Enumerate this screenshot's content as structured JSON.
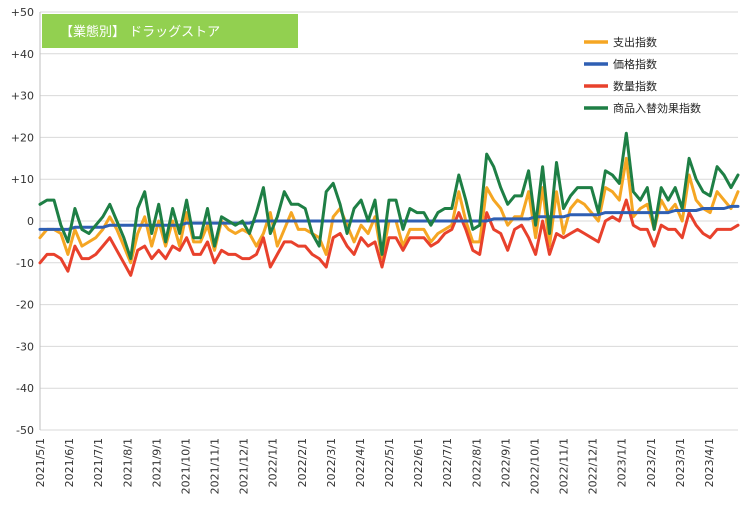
{
  "chart_data": {
    "type": "line",
    "title": "【業態別】 ドラッグストア",
    "title_bg_color": "#92D050",
    "xlabel": "",
    "ylabel": "",
    "ylim": [
      -50,
      50
    ],
    "yticks": [
      "+50",
      "+40",
      "+30",
      "+20",
      "+10",
      "0",
      "-10",
      "-20",
      "-30",
      "-40",
      "-50"
    ],
    "xtick_labels": [
      "2021/5/1",
      "2021/6/1",
      "2021/7/1",
      "2021/8/1",
      "2021/9/1",
      "2021/10/1",
      "2021/11/1",
      "2021/12/1",
      "2022/1/1",
      "2022/2/1",
      "2022/3/1",
      "2022/4/1",
      "2022/5/1",
      "2022/6/1",
      "2022/7/1",
      "2022/8/1",
      "2022/9/1",
      "2022/10/1",
      "2022/11/1",
      "2022/12/1",
      "2023/1/1",
      "2023/2/1",
      "2023/3/1",
      "2023/4/1"
    ],
    "grid": "horizontal",
    "legend_position": "top-right",
    "series": [
      {
        "name": "支出指数",
        "color": "#F5A623",
        "values": [
          -4,
          -2,
          -2,
          -3,
          -8,
          -2,
          -6,
          -5,
          -4,
          -2,
          1,
          -2,
          -6,
          -10,
          -3,
          1,
          -6,
          0,
          -6,
          0,
          -6,
          2,
          -5,
          -5,
          -1,
          -7,
          0,
          -2,
          -3,
          -2,
          -3,
          -6,
          -3,
          2,
          -6,
          -2,
          2,
          -2,
          -2,
          -3,
          -4,
          -8,
          1,
          3,
          -1,
          -5,
          -1,
          -3,
          1,
          -9,
          0,
          0,
          -6,
          -2,
          -2,
          -2,
          -5,
          -3,
          -2,
          -1,
          7,
          0,
          -5,
          -5,
          8,
          5,
          3,
          -1,
          1,
          1,
          7,
          -4,
          8,
          -6,
          7,
          -3,
          3,
          5,
          4,
          2,
          0,
          8,
          7,
          5,
          15,
          1,
          3,
          4,
          -2,
          5,
          2,
          4,
          0,
          11,
          5,
          3,
          2,
          7,
          5,
          3,
          7
        ]
      },
      {
        "name": "価格指数",
        "color": "#2F5FB3",
        "values": [
          -2,
          -2,
          -2,
          -2,
          -2,
          -1.5,
          -1.5,
          -1.5,
          -1.5,
          -1.5,
          -1,
          -1,
          -1,
          -1,
          -1,
          -1,
          -1,
          -1,
          -1,
          -1,
          -1,
          -0.5,
          -0.5,
          -0.5,
          -0.5,
          -0.5,
          -0.5,
          -0.5,
          -0.5,
          -0.5,
          -0.5,
          0,
          0,
          0,
          0,
          0,
          0,
          0,
          0,
          0,
          0,
          0,
          0,
          0,
          0,
          0,
          0,
          0,
          0,
          0,
          0,
          0,
          0,
          0,
          0,
          0,
          0,
          0,
          0,
          0,
          0,
          0,
          0,
          0,
          0,
          0.5,
          0.5,
          0.5,
          0.5,
          0.5,
          0.5,
          1,
          1,
          1,
          1,
          1,
          1.5,
          1.5,
          1.5,
          1.5,
          1.5,
          2,
          2,
          2,
          2,
          2,
          2,
          2,
          2,
          2,
          2,
          2.5,
          2.5,
          2.5,
          2.5,
          3,
          3,
          3,
          3,
          3.5,
          3.5
        ]
      },
      {
        "name": "数量指数",
        "color": "#E8412C",
        "values": [
          -10,
          -8,
          -8,
          -9,
          -12,
          -6,
          -9,
          -9,
          -8,
          -6,
          -4,
          -7,
          -10,
          -13,
          -7,
          -6,
          -9,
          -7,
          -9,
          -6,
          -7,
          -4,
          -8,
          -8,
          -5,
          -10,
          -7,
          -8,
          -8,
          -9,
          -9,
          -8,
          -4,
          -11,
          -8,
          -5,
          -5,
          -6,
          -6,
          -8,
          -9,
          -11,
          -4,
          -3,
          -6,
          -8,
          -4,
          -6,
          -5,
          -11,
          -4,
          -4,
          -7,
          -4,
          -4,
          -4,
          -6,
          -5,
          -3,
          -2,
          2,
          -2,
          -7,
          -8,
          2,
          -2,
          -3,
          -7,
          -2,
          -1,
          -4,
          -8,
          0,
          -8,
          -3,
          -4,
          -3,
          -2,
          -3,
          -4,
          -5,
          0,
          1,
          0,
          5,
          -1,
          -2,
          -2,
          -6,
          -1,
          -2,
          -2,
          -4,
          2,
          -1,
          -3,
          -4,
          -2,
          -2,
          -2,
          -1
        ]
      },
      {
        "name": "商品入替効果指数",
        "color": "#1E7F45",
        "values": [
          4,
          5,
          5,
          -1,
          -5,
          3,
          -2,
          -3,
          -1,
          1,
          4,
          0,
          -4,
          -9,
          3,
          7,
          -3,
          4,
          -5,
          3,
          -3,
          5,
          -4,
          -4,
          3,
          -6,
          1,
          0,
          -1,
          0,
          -3,
          2,
          8,
          -3,
          1,
          7,
          4,
          4,
          3,
          -3,
          -6,
          7,
          9,
          4,
          -3,
          3,
          5,
          0,
          5,
          -8,
          5,
          5,
          -2,
          3,
          2,
          2,
          -1,
          2,
          3,
          3,
          11,
          5,
          -2,
          -1,
          16,
          13,
          8,
          4,
          6,
          6,
          12,
          -1,
          13,
          -3,
          14,
          3,
          6,
          8,
          8,
          8,
          2,
          12,
          11,
          9,
          21,
          7,
          5,
          8,
          -2,
          8,
          5,
          8,
          3,
          15,
          10,
          7,
          6,
          13,
          11,
          8,
          11
        ]
      }
    ]
  }
}
